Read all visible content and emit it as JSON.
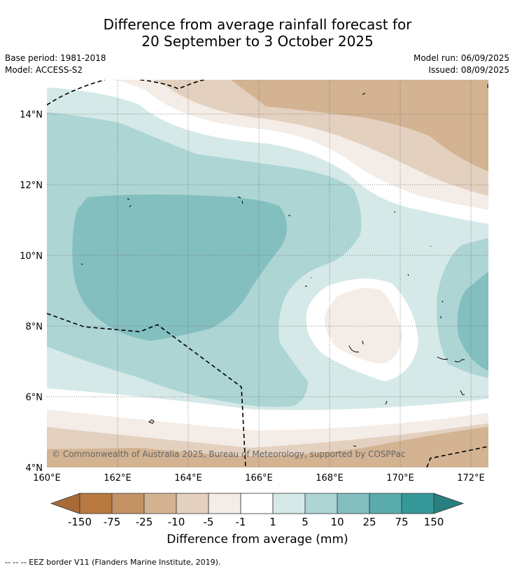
{
  "title_line1": "Difference from average rainfall forecast for",
  "title_line2": "20 September to 3 October 2025",
  "meta": {
    "base_period": "Base period: 1981-2018",
    "model": "Model: ACCESS-S2",
    "model_run": "Model run: 06/09/2025",
    "issued": "Issued: 08/09/2025"
  },
  "copyright": "© Commonwealth of Australia 2025, Bureau of Meteorology, supported by COSPPac",
  "lon_labels": [
    "160°E",
    "162°E",
    "164°E",
    "166°E",
    "168°E",
    "170°E",
    "172°E"
  ],
  "lat_labels": [
    "4°N",
    "6°N",
    "8°N",
    "10°N",
    "12°N",
    "14°N"
  ],
  "colorbar": {
    "ticks": [
      "-150",
      "-75",
      "-25",
      "-10",
      "-5",
      "-1",
      "1",
      "5",
      "10",
      "25",
      "75",
      "150"
    ],
    "colors": [
      "#a86b38",
      "#b7793f",
      "#c39366",
      "#d3b392",
      "#e3d0bf",
      "#f4ece6",
      "#ffffff",
      "#d5e9e8",
      "#acd5d4",
      "#83bfbf",
      "#5aabab",
      "#359999",
      "#287f80"
    ],
    "title": "Difference from average (mm)"
  },
  "footnote": "--  --  -- EEZ border V11 (Flanders Marine Institute, 2019)."
}
